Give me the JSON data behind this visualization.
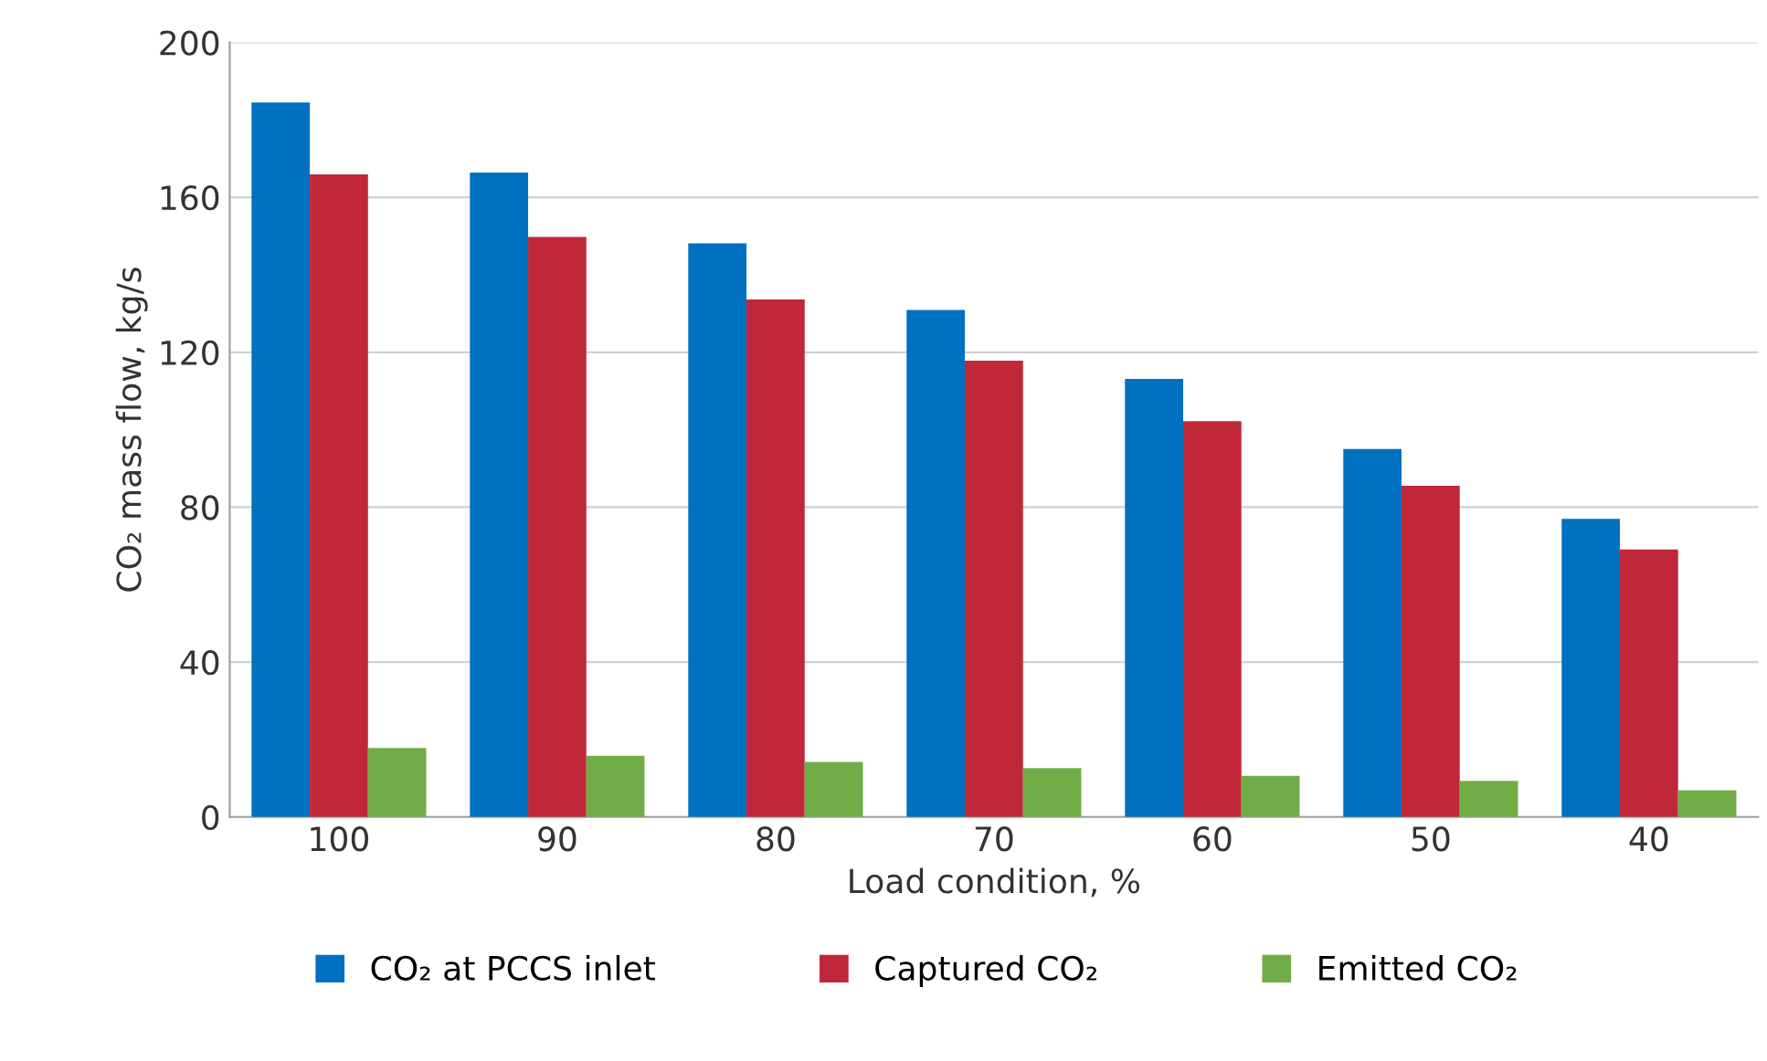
{
  "chart_data": {
    "type": "bar",
    "xlabel": "Load condition, %",
    "ylabel": "CO₂ mass flow, kg/s",
    "categories": [
      "100",
      "90",
      "80",
      "70",
      "60",
      "50",
      "40"
    ],
    "series": [
      {
        "name": "CO₂ at PCCS inlet",
        "color": "#0070c0",
        "values": [
          184.5,
          166.4,
          148.1,
          130.9,
          113.1,
          95.0,
          77.0
        ]
      },
      {
        "name": "Captured CO₂",
        "color": "#c0283a",
        "values": [
          165.9,
          149.8,
          133.6,
          117.8,
          102.2,
          85.5,
          69.1
        ]
      },
      {
        "name": "Emitted CO₂",
        "color": "#70ad47",
        "values": [
          17.8,
          15.8,
          14.2,
          12.6,
          10.6,
          9.3,
          6.9
        ]
      }
    ],
    "ylim": [
      0,
      200
    ],
    "yticks": [
      0,
      40,
      80,
      120,
      160,
      200
    ],
    "grid": "y",
    "legend": "bottom"
  }
}
